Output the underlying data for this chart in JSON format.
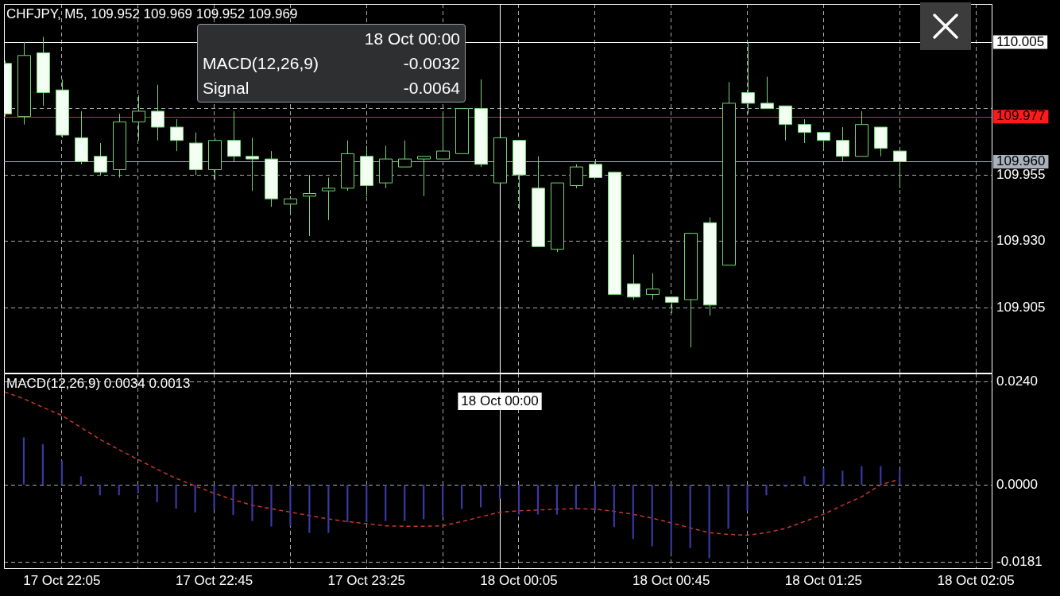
{
  "chart_data": [
    {
      "type": "candlestick",
      "title": "CHFJPY, M5, 109.952 109.969 109.952 109.969",
      "categories": [
        null,
        null,
        null,
        "17 Oct 22:05",
        null,
        null,
        null,
        null,
        null,
        null,
        null,
        "17 Oct 22:45",
        null,
        null,
        null,
        null,
        null,
        null,
        null,
        "17 Oct 23:25",
        null,
        null,
        null,
        null,
        null,
        null,
        "18 Oct 00:00",
        "18 Oct 00:05",
        null,
        null,
        null,
        null,
        null,
        null,
        null,
        "18 Oct 00:45",
        null,
        null,
        null,
        null,
        null,
        null,
        null,
        "18 Oct 01:25",
        null,
        null,
        null,
        null,
        null,
        null,
        null,
        "18 Oct 02:05"
      ],
      "ohlc": [
        [
          109.997,
          109.998,
          109.977,
          109.978
        ],
        [
          109.977,
          110.005,
          109.974,
          110.0
        ],
        [
          110.001,
          110.007,
          109.981,
          109.986
        ],
        [
          109.987,
          109.991,
          109.969,
          109.97
        ],
        [
          109.969,
          109.979,
          109.959,
          109.96
        ],
        [
          109.962,
          109.967,
          109.955,
          109.956
        ],
        [
          109.957,
          109.978,
          109.954,
          109.975
        ],
        [
          109.975,
          109.985,
          109.968,
          109.979
        ],
        [
          109.979,
          109.989,
          109.968,
          109.973
        ],
        [
          109.973,
          109.976,
          109.964,
          109.968
        ],
        [
          109.967,
          109.971,
          109.955,
          109.957
        ],
        [
          109.957,
          109.969,
          109.953,
          109.968
        ],
        [
          109.968,
          109.979,
          109.96,
          109.962
        ],
        [
          109.962,
          109.969,
          109.949,
          109.961
        ],
        [
          109.961,
          109.964,
          109.943,
          109.946
        ],
        [
          109.944,
          109.947,
          109.941,
          109.946
        ],
        [
          109.947,
          109.955,
          109.932,
          109.948
        ],
        [
          109.949,
          109.954,
          109.938,
          109.95
        ],
        [
          109.95,
          109.968,
          109.949,
          109.963
        ],
        [
          109.962,
          109.966,
          109.947,
          109.951
        ],
        [
          109.952,
          109.966,
          109.95,
          109.961
        ],
        [
          109.958,
          109.968,
          109.958,
          109.961
        ],
        [
          109.961,
          109.962,
          109.947,
          109.962
        ],
        [
          109.961,
          109.978,
          109.961,
          109.964
        ],
        [
          109.963,
          109.98,
          109.963,
          109.98
        ],
        [
          109.98,
          109.991,
          109.958,
          109.959
        ],
        [
          109.952,
          109.969,
          109.952,
          109.969
        ],
        [
          109.968,
          109.968,
          109.942,
          109.955
        ],
        [
          109.95,
          109.962,
          109.928,
          109.928
        ],
        [
          109.927,
          109.952,
          109.926,
          109.952
        ],
        [
          109.951,
          109.959,
          109.95,
          109.958
        ],
        [
          109.959,
          109.961,
          109.954,
          109.954
        ],
        [
          109.956,
          109.956,
          109.91,
          109.91
        ],
        [
          109.914,
          109.925,
          109.908,
          109.909
        ],
        [
          109.91,
          109.918,
          109.908,
          109.912
        ],
        [
          109.909,
          109.909,
          109.903,
          109.907
        ],
        [
          109.908,
          109.933,
          109.89,
          109.933
        ],
        [
          109.937,
          109.939,
          109.902,
          109.906
        ],
        [
          109.921,
          109.99,
          109.921,
          109.982
        ],
        [
          109.986,
          110.005,
          109.978,
          109.982
        ],
        [
          109.982,
          109.992,
          109.98,
          109.98
        ],
        [
          109.981,
          109.981,
          109.968,
          109.974
        ],
        [
          109.974,
          109.976,
          109.967,
          109.971
        ],
        [
          109.971,
          109.971,
          109.964,
          109.968
        ],
        [
          109.968,
          109.973,
          109.96,
          109.962
        ],
        [
          109.962,
          109.979,
          109.962,
          109.974
        ],
        [
          109.973,
          109.973,
          109.962,
          109.965
        ],
        [
          109.964,
          109.965,
          109.95,
          109.96
        ],
        null,
        null,
        null,
        null
      ],
      "ylim": [
        109.8805,
        110.0194
      ],
      "yticks": [
        {
          "value": 109.98,
          "label": null
        },
        {
          "value": 109.955,
          "label": "109.955"
        },
        {
          "value": 109.93,
          "label": "109.930"
        },
        {
          "value": 109.905,
          "label": "109.905"
        }
      ],
      "grid": true,
      "tick_labels": "y",
      "ref_lines": [
        {
          "axis": "y",
          "value": 110.005,
          "label": "110.005",
          "color": "#ffffff"
        },
        {
          "axis": "y",
          "value": 109.977,
          "label": "109.977",
          "color": "#ff1a1a"
        },
        {
          "axis": "y",
          "value": 109.96,
          "label": "109.960",
          "color": "#a9b1bd"
        },
        {
          "axis": "x",
          "value": "18 Oct 00:00",
          "color": "#ffffff"
        }
      ],
      "annotations": [
        "18 Oct 00:00",
        "MACD(12,26,9)",
        "-0.0032",
        "Signal",
        "-0.0064"
      ]
    },
    {
      "type": "bar",
      "title": "MACD(12,26,9) 0.0034 0.0013",
      "categories": [
        null,
        null,
        null,
        "17 Oct 22:05",
        null,
        null,
        null,
        null,
        null,
        null,
        null,
        "17 Oct 22:45",
        null,
        null,
        null,
        null,
        null,
        null,
        null,
        "17 Oct 23:25",
        null,
        null,
        null,
        null,
        null,
        null,
        "18 Oct 00:00",
        "18 Oct 00:05",
        null,
        null,
        null,
        null,
        null,
        null,
        null,
        "18 Oct 00:45",
        null,
        null,
        null,
        null,
        null,
        null,
        null,
        "18 Oct 01:25",
        null,
        null,
        null,
        null,
        null,
        null,
        null,
        "18 Oct 02:05"
      ],
      "series": [
        {
          "type": "bar",
          "color": "#3a3aa8",
          "values": [
            null,
            0.011,
            0.0094,
            0.0056,
            0.0019,
            -0.0024,
            -0.0024,
            -0.002,
            -0.004,
            -0.0055,
            -0.0064,
            -0.0058,
            -0.007,
            -0.0084,
            -0.0097,
            -0.0096,
            -0.0112,
            -0.0112,
            -0.0087,
            -0.0087,
            -0.0084,
            -0.0084,
            -0.008,
            -0.0072,
            -0.0056,
            -0.0052,
            -0.0032,
            -0.0069,
            -0.0069,
            -0.0069,
            -0.0057,
            -0.006,
            -0.0098,
            -0.0126,
            -0.0143,
            -0.016,
            -0.0147,
            -0.0171,
            -0.0102,
            -0.006,
            -0.0024,
            -0.0005,
            0.0019,
            0.0038,
            0.0032,
            0.0043,
            0.0043,
            0.0034,
            null,
            null,
            null,
            null
          ]
        },
        {
          "type": "line",
          "color": "#c8382c",
          "line_style": "dashed",
          "values": [
            0.0217,
            0.0201,
            0.0181,
            0.0162,
            0.0134,
            0.0106,
            0.0082,
            0.0059,
            0.0036,
            0.0015,
            -0.0003,
            -0.002,
            -0.0035,
            -0.0048,
            -0.0056,
            -0.0064,
            -0.0072,
            -0.008,
            -0.0086,
            -0.0091,
            -0.0096,
            -0.0097,
            -0.0097,
            -0.0096,
            -0.0086,
            -0.0075,
            -0.0064,
            -0.0061,
            -0.0059,
            -0.0057,
            -0.0056,
            -0.0057,
            -0.0062,
            -0.0069,
            -0.0078,
            -0.0089,
            -0.0101,
            -0.0112,
            -0.0116,
            -0.0118,
            -0.0112,
            -0.0102,
            -0.0086,
            -0.0069,
            -0.0048,
            -0.0028,
            0.0,
            0.0013,
            null,
            null,
            null,
            null
          ]
        }
      ],
      "ylim": [
        -0.0195,
        0.026
      ],
      "yticks": [
        {
          "value": 0.024,
          "label": "0.0240"
        },
        {
          "value": 0.0,
          "label": "0.0000"
        },
        {
          "value": -0.0181,
          "label": "-0.0181"
        }
      ],
      "grid": true,
      "ref_lines": [
        {
          "axis": "x",
          "value": "18 Oct 00:00",
          "color": "#ffffff"
        }
      ]
    }
  ]
}
